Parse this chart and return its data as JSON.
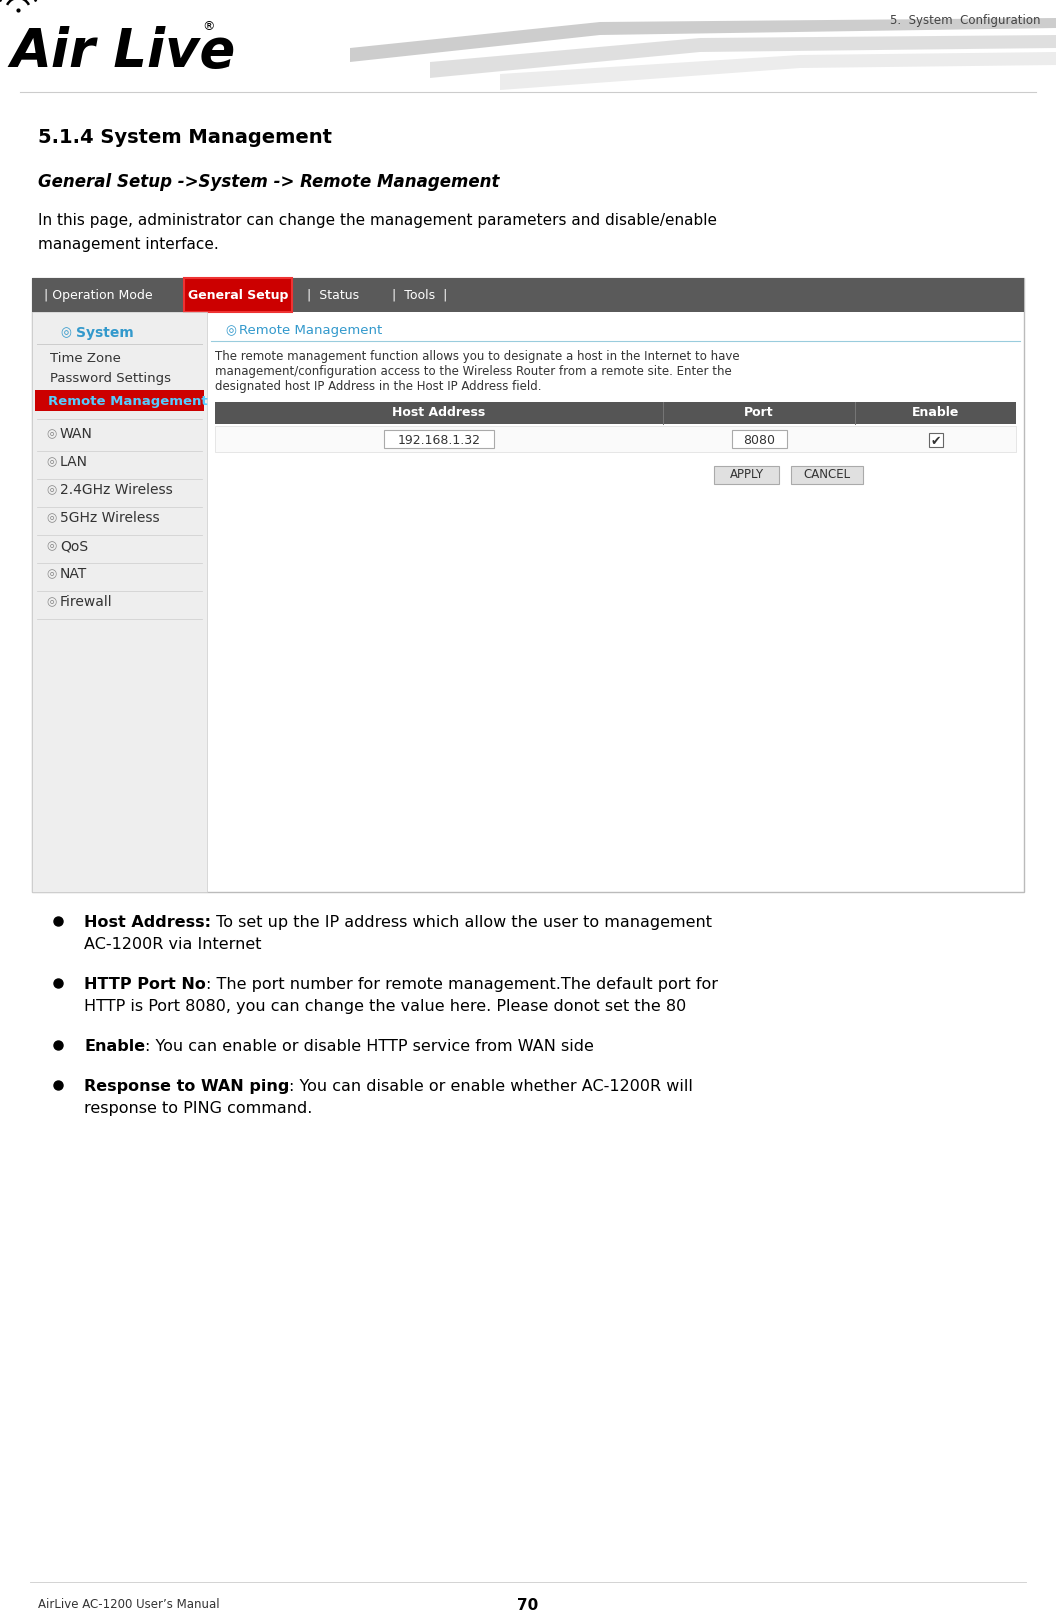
{
  "page_title": "5.  System  Configuration",
  "section_title": "5.1.4 System Management",
  "subsection_title": "General Setup ->System -> Remote Management",
  "intro_line1": "In this page, administrator can change the management parameters and disable/enable",
  "intro_line2": "management interface.",
  "nav_items_left": [
    "  |  Operation Mode  ",
    "|  Status  ",
    "|  Tools  ",
    "|"
  ],
  "nav_active": "General Setup",
  "sidebar_items": [
    {
      "label": "System",
      "type": "section_header"
    },
    {
      "label": "Time Zone",
      "type": "subitem"
    },
    {
      "label": "Password Settings",
      "type": "subitem"
    },
    {
      "label": "Remote Management",
      "type": "active"
    },
    {
      "label": "WAN",
      "type": "section"
    },
    {
      "label": "LAN",
      "type": "section"
    },
    {
      "label": "2.4GHz Wireless",
      "type": "section"
    },
    {
      "label": "5GHz Wireless",
      "type": "section"
    },
    {
      "label": "QoS",
      "type": "section"
    },
    {
      "label": "NAT",
      "type": "section"
    },
    {
      "label": "Firewall",
      "type": "section"
    }
  ],
  "content_title": "Remote Management",
  "content_desc_line1": "The remote management function allows you to designate a host in the Internet to have",
  "content_desc_line2": "management/configuration access to the Wireless Router from a remote site. Enter the",
  "content_desc_line3": "designated host IP Address in the Host IP Address field.",
  "table_headers": [
    "Host Address",
    "Port",
    "Enable"
  ],
  "host_value": "192.168.1.32",
  "port_value": "8080",
  "buttons": [
    "APPLY",
    "CANCEL"
  ],
  "bullet_points": [
    {
      "bold": "Host Address:",
      "rest1": " To set up the IP address which allow the user to management",
      "rest2": "AC-1200R via Internet"
    },
    {
      "bold": "HTTP Port No",
      "rest1": ": The port number for remote management.The default port for",
      "rest2": "HTTP is Port 8080, you can change the value here. Please donot set the 80"
    },
    {
      "bold": "Enable",
      "rest1": ": You can enable or disable HTTP service from WAN side",
      "rest2": ""
    },
    {
      "bold": "Response to WAN ping",
      "rest1": ": You can disable or enable whether AC-1200R will",
      "rest2": "response to PING command."
    }
  ],
  "footer_left": "AirLive AC-1200 User’s Manual",
  "footer_center": "70",
  "bg_color": "#ffffff",
  "header_line_color": "#cccccc",
  "nav_bg": "#5a5a5a",
  "nav_active_bg": "#cc0000",
  "nav_text_color": "#ffffff",
  "sidebar_bg": "#efefef",
  "sidebar_border": "#cccccc",
  "blue_color": "#3399cc",
  "table_header_bg": "#555555",
  "table_header_color": "#ffffff",
  "button_bg": "#e0e0e0",
  "button_border": "#aaaaaa"
}
